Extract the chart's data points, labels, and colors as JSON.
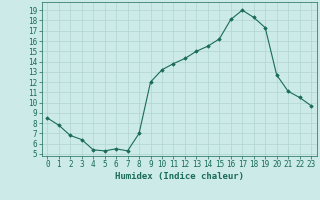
{
  "x": [
    0,
    1,
    2,
    3,
    4,
    5,
    6,
    7,
    8,
    9,
    10,
    11,
    12,
    13,
    14,
    15,
    16,
    17,
    18,
    19,
    20,
    21,
    22,
    23
  ],
  "y": [
    8.5,
    7.8,
    6.8,
    6.4,
    5.4,
    5.3,
    5.5,
    5.3,
    7.0,
    12.0,
    13.2,
    13.8,
    14.3,
    15.0,
    15.5,
    16.2,
    18.1,
    19.0,
    18.3,
    17.3,
    12.7,
    11.1,
    10.5,
    9.7
  ],
  "xlabel": "Humidex (Indice chaleur)",
  "bg_color": "#cceae7",
  "line_color": "#1a6b5a",
  "marker": "D",
  "marker_size": 1.8,
  "line_width": 0.8,
  "xlim": [
    -0.5,
    23.5
  ],
  "ylim": [
    4.8,
    19.8
  ],
  "yticks": [
    5,
    6,
    7,
    8,
    9,
    10,
    11,
    12,
    13,
    14,
    15,
    16,
    17,
    18,
    19
  ],
  "xticks": [
    0,
    1,
    2,
    3,
    4,
    5,
    6,
    7,
    8,
    9,
    10,
    11,
    12,
    13,
    14,
    15,
    16,
    17,
    18,
    19,
    20,
    21,
    22,
    23
  ],
  "grid_color": "#b0d5d0",
  "tick_color": "#1a6b5a",
  "label_color": "#1a6b5a",
  "font_size": 5.5,
  "xlabel_fontsize": 6.5
}
